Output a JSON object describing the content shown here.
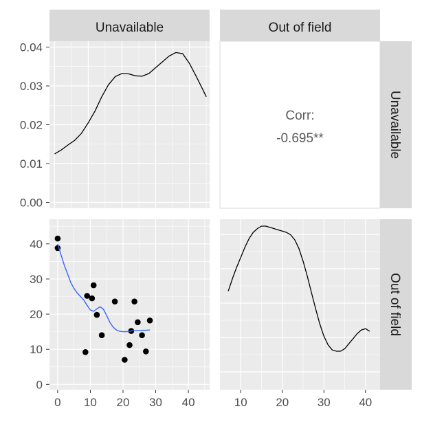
{
  "chart_data": {
    "type": "scatter-matrix",
    "variables": [
      "Unavailable",
      "Out of field"
    ],
    "colors": {
      "panel_bg": "#ebebeb",
      "strip_bg": "#d9d9d9",
      "grid_major": "#ffffff",
      "density_line": "#000000",
      "smooth_line": "#3366ff",
      "points": "#000000",
      "corr_text": "#595959"
    },
    "grid": true,
    "panels": {
      "density_unavailable": {
        "type": "line",
        "x_range": [
          -1.5,
          46
        ],
        "y_range": [
          -0.0015,
          0.0415
        ],
        "y_ticks": [
          0.0,
          0.01,
          0.02,
          0.03,
          0.04
        ],
        "y_tick_labels": [
          "0.00",
          "0.01",
          "0.02",
          "0.03",
          "0.04"
        ],
        "x": [
          0,
          2,
          4,
          6,
          8,
          10,
          12,
          14,
          16,
          18,
          20,
          22,
          24,
          26,
          28,
          30,
          32,
          34,
          36,
          38,
          40,
          42,
          44,
          45
        ],
        "y": [
          0.0125,
          0.0135,
          0.0148,
          0.016,
          0.0178,
          0.0205,
          0.0235,
          0.0272,
          0.0303,
          0.0324,
          0.0332,
          0.0331,
          0.0326,
          0.0325,
          0.0332,
          0.0347,
          0.0362,
          0.0377,
          0.0386,
          0.0383,
          0.0358,
          0.0325,
          0.029,
          0.0272
        ]
      },
      "corr": {
        "label": "Corr:",
        "value": "-0.695**"
      },
      "scatter": {
        "type": "scatter",
        "x_range": [
          -2.5,
          46.5
        ],
        "y_range": [
          -1.5,
          47
        ],
        "x_ticks": [
          0,
          10,
          20,
          30,
          40
        ],
        "y_ticks": [
          0,
          10,
          20,
          30,
          40
        ],
        "points": [
          {
            "x": 0,
            "y": 41.5
          },
          {
            "x": 0,
            "y": 38.8
          },
          {
            "x": 8.5,
            "y": 9.2
          },
          {
            "x": 9,
            "y": 25.2
          },
          {
            "x": 10.5,
            "y": 24.5
          },
          {
            "x": 11,
            "y": 28.2
          },
          {
            "x": 12,
            "y": 19.8
          },
          {
            "x": 13.5,
            "y": 14
          },
          {
            "x": 17.5,
            "y": 23.6
          },
          {
            "x": 20.5,
            "y": 7
          },
          {
            "x": 22,
            "y": 11.2
          },
          {
            "x": 22.5,
            "y": 15.2
          },
          {
            "x": 23.5,
            "y": 23.6
          },
          {
            "x": 24.5,
            "y": 17.7
          },
          {
            "x": 25.8,
            "y": 14
          },
          {
            "x": 27,
            "y": 9.4
          },
          {
            "x": 28.2,
            "y": 18.2
          }
        ],
        "smooth_x": [
          0,
          1,
          2,
          3,
          4,
          5,
          6,
          7,
          8,
          9,
          10,
          11,
          12,
          13,
          14,
          15,
          16,
          17,
          18,
          19,
          20,
          21,
          22,
          23,
          24,
          25,
          26,
          27,
          28.2
        ],
        "smooth_y": [
          40,
          37,
          34,
          31.5,
          29,
          27.3,
          26,
          25,
          24,
          22.5,
          21.2,
          20.8,
          21.5,
          22.1,
          21.4,
          19.6,
          17.6,
          16.3,
          15.5,
          15.1,
          15,
          15,
          15.1,
          15.3,
          15.3,
          15.3,
          15.4,
          15.4,
          15.5
        ]
      },
      "density_outfield": {
        "type": "line",
        "x_range": [
          5,
          43.5
        ],
        "x_ticks": [
          10,
          20,
          30,
          40
        ],
        "y_range": [
          0,
          1
        ],
        "x": [
          7,
          8,
          9,
          10,
          11,
          12,
          13,
          14,
          15,
          16,
          17,
          18,
          19,
          20,
          21,
          22,
          23,
          24,
          25,
          26,
          27,
          28,
          29,
          30,
          31,
          32,
          33,
          34,
          35,
          36,
          37,
          38,
          39,
          40,
          41
        ],
        "y": [
          0.48,
          0.58,
          0.67,
          0.75,
          0.83,
          0.9,
          0.95,
          0.98,
          1.0,
          1.0,
          0.99,
          0.98,
          0.97,
          0.96,
          0.95,
          0.93,
          0.89,
          0.82,
          0.72,
          0.6,
          0.47,
          0.34,
          0.22,
          0.12,
          0.05,
          0.01,
          0.0,
          0.0,
          0.02,
          0.06,
          0.1,
          0.14,
          0.17,
          0.18,
          0.16
        ]
      }
    }
  }
}
